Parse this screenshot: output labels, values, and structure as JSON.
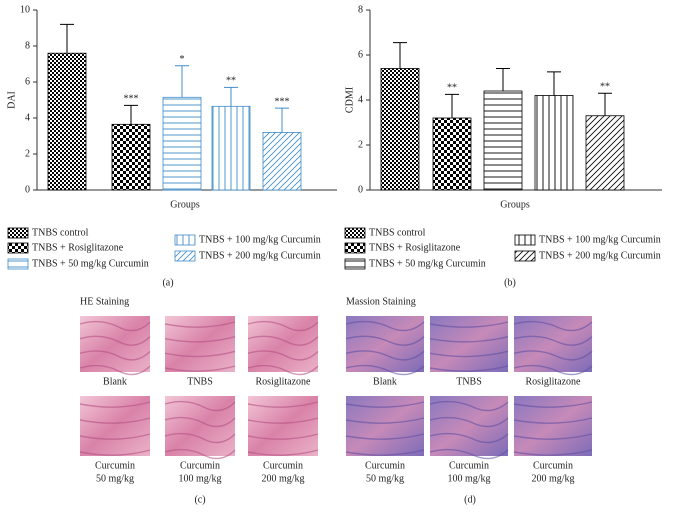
{
  "chart_data": [
    {
      "type": "bar",
      "ylabel": "DAI",
      "xlabel": "Groups",
      "panel_label": "(a)",
      "categories": [
        "TNBS control",
        "TNBS + Rosiglitazone",
        "TNBS + 50 mg/kg Curcumin",
        "TNBS + 100 mg/kg Curcumin",
        "TNBS + 200 mg/kg Curcumin"
      ],
      "values": [
        7.6,
        3.65,
        5.15,
        4.65,
        3.2
      ],
      "errors": [
        1.6,
        1.05,
        1.75,
        1.05,
        1.35
      ],
      "annotations": [
        null,
        "***",
        "*",
        "**",
        "***"
      ],
      "colors": [
        "#000000",
        "#000000",
        "#3f8cc8",
        "#3f8cc8",
        "#3f8cc8"
      ],
      "patterns": [
        "crosshatch",
        "checker",
        "hlines",
        "vlines",
        "diagonal"
      ],
      "ylim": [
        0,
        10
      ],
      "yticks": [
        0,
        2,
        4,
        6,
        8,
        10
      ]
    },
    {
      "type": "bar",
      "ylabel": "CDMI",
      "xlabel": "Groups",
      "panel_label": "(b)",
      "categories": [
        "TNBS control",
        "TNBS + Rosiglitazone",
        "TNBS + 50 mg/kg Curcumin",
        "TNBS + 100 mg/kg Curcumin",
        "TNBS + 200 mg/kg Curcumin"
      ],
      "values": [
        5.4,
        3.2,
        4.4,
        4.2,
        3.3
      ],
      "errors": [
        1.15,
        1.05,
        1.0,
        1.05,
        1.0
      ],
      "annotations": [
        null,
        "**",
        null,
        null,
        "**"
      ],
      "colors": [
        "#000000",
        "#000000",
        "#000000",
        "#000000",
        "#000000"
      ],
      "patterns": [
        "crosshatch",
        "checker",
        "hlines",
        "vlines",
        "diagonal"
      ],
      "ylim": [
        0,
        8
      ],
      "yticks": [
        0,
        2,
        4,
        6,
        8
      ]
    }
  ],
  "figures": [
    {
      "title": "HE Staining",
      "label": "(c)",
      "stain": "he",
      "images": [
        {
          "label": [
            "Blank"
          ]
        },
        {
          "label": [
            "TNBS"
          ]
        },
        {
          "label": [
            "Rosiglitazone"
          ]
        },
        {
          "label": [
            "Curcumin",
            "50 mg/kg"
          ]
        },
        {
          "label": [
            "Curcumin",
            "100 mg/kg"
          ]
        },
        {
          "label": [
            "Curcumin",
            "200 mg/kg"
          ]
        }
      ]
    },
    {
      "title": "Massion Staining",
      "label": "(d)",
      "stain": "masson",
      "images": [
        {
          "label": [
            "Blank"
          ]
        },
        {
          "label": [
            "TNBS"
          ]
        },
        {
          "label": [
            "Rosiglitazone"
          ]
        },
        {
          "label": [
            "Curcumin",
            "50 mg/kg"
          ]
        },
        {
          "label": [
            "Curcumin",
            "100 mg/kg"
          ]
        },
        {
          "label": [
            "Curcumin",
            "200 mg/kg"
          ]
        }
      ]
    }
  ]
}
